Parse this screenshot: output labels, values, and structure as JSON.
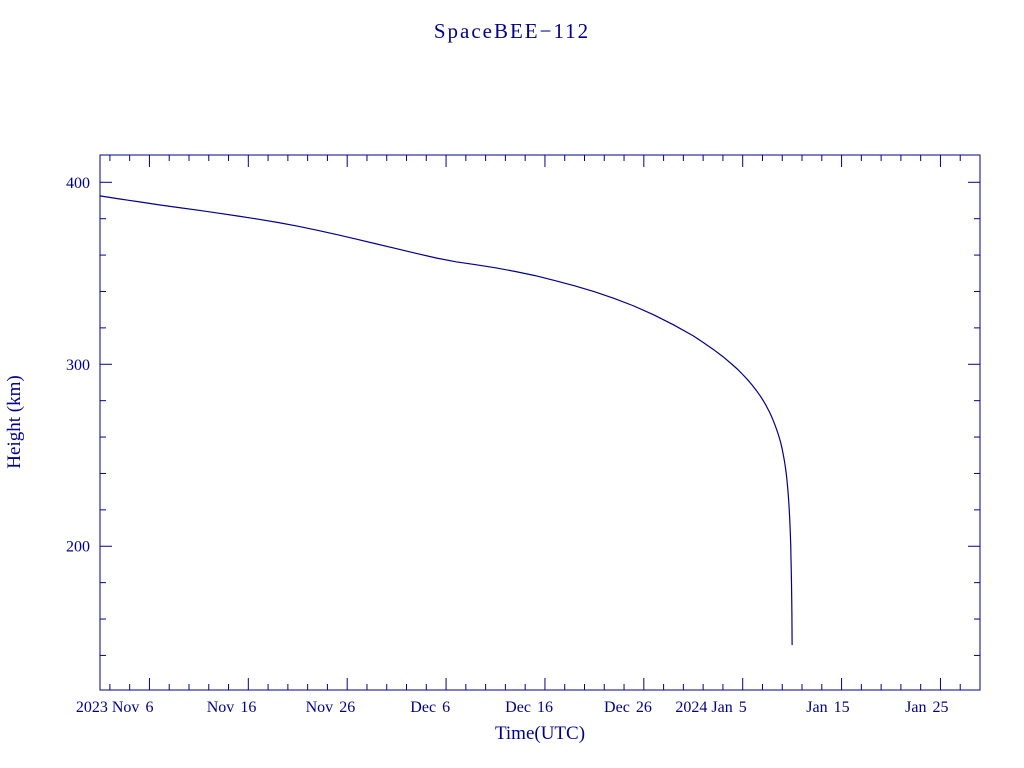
{
  "colors": {
    "ink": "#00008B",
    "background": "#FFFFFF"
  },
  "chart_data": {
    "type": "line",
    "title": "SpaceBEE−112",
    "xlabel": "Time(UTC)",
    "ylabel": "Height (km)",
    "x_unit": "days since 2023 Nov 1 00:00 UTC",
    "xlim": [
      0,
      89
    ],
    "ylim": [
      121,
      415
    ],
    "grid": false,
    "legend": "none",
    "x_ticks": [
      {
        "day": 5,
        "number": "6",
        "prefix": "2023 Nov"
      },
      {
        "day": 15,
        "number": "16",
        "prefix": "Nov"
      },
      {
        "day": 25,
        "number": "26",
        "prefix": "Nov"
      },
      {
        "day": 35,
        "number": "6",
        "prefix": "Dec"
      },
      {
        "day": 45,
        "number": "16",
        "prefix": "Dec"
      },
      {
        "day": 55,
        "number": "26",
        "prefix": "Dec"
      },
      {
        "day": 65,
        "number": "5",
        "prefix": "2024 Jan"
      },
      {
        "day": 75,
        "number": "15",
        "prefix": "Jan"
      },
      {
        "day": 85,
        "number": "25",
        "prefix": "Jan"
      }
    ],
    "x_minor_step": 2,
    "y_ticks": [
      {
        "value": 200,
        "label": "200"
      },
      {
        "value": 300,
        "label": "300"
      },
      {
        "value": 400,
        "label": "400"
      }
    ],
    "y_minor_step": 20,
    "series": [
      {
        "name": "SpaceBEE-112 height",
        "points": [
          [
            0,
            392.5
          ],
          [
            2,
            390.8
          ],
          [
            4,
            389.2
          ],
          [
            6,
            387.6
          ],
          [
            8,
            386.1
          ],
          [
            10,
            384.6
          ],
          [
            12,
            383.0
          ],
          [
            14,
            381.4
          ],
          [
            16,
            379.7
          ],
          [
            18,
            377.9
          ],
          [
            20,
            375.9
          ],
          [
            22,
            373.6
          ],
          [
            24,
            371.2
          ],
          [
            26,
            368.7
          ],
          [
            28,
            366.1
          ],
          [
            30,
            363.5
          ],
          [
            32,
            360.9
          ],
          [
            34,
            358.4
          ],
          [
            36,
            356.3
          ],
          [
            38,
            354.7
          ],
          [
            40,
            353.0
          ],
          [
            42,
            351.0
          ],
          [
            44,
            348.7
          ],
          [
            46,
            346.0
          ],
          [
            48,
            343.1
          ],
          [
            50,
            339.9
          ],
          [
            52,
            336.2
          ],
          [
            54,
            332.0
          ],
          [
            56,
            327.2
          ],
          [
            58,
            321.7
          ],
          [
            60,
            315.6
          ],
          [
            61,
            312.0
          ],
          [
            62,
            308.3
          ],
          [
            63,
            304.2
          ],
          [
            64,
            299.6
          ],
          [
            64.5,
            297.1
          ],
          [
            65,
            294.4
          ],
          [
            65.5,
            291.5
          ],
          [
            66,
            288.3
          ],
          [
            66.4,
            285.5
          ],
          [
            66.8,
            282.4
          ],
          [
            67.1,
            279.8
          ],
          [
            67.4,
            277.0
          ],
          [
            67.7,
            273.8
          ],
          [
            67.9,
            271.5
          ],
          [
            68.1,
            269.0
          ],
          [
            68.3,
            266.2
          ],
          [
            68.5,
            263.1
          ],
          [
            68.65,
            260.6
          ],
          [
            68.8,
            257.7
          ],
          [
            68.95,
            254.4
          ],
          [
            69.05,
            251.9
          ],
          [
            69.15,
            249.1
          ],
          [
            69.25,
            245.9
          ],
          [
            69.32,
            243.4
          ],
          [
            69.39,
            240.5
          ],
          [
            69.45,
            237.7
          ],
          [
            69.51,
            234.5
          ],
          [
            69.57,
            230.8
          ],
          [
            69.62,
            227.3
          ],
          [
            69.67,
            223.2
          ],
          [
            69.71,
            219.5
          ],
          [
            69.75,
            215.2
          ],
          [
            69.78,
            211.6
          ],
          [
            69.81,
            207.5
          ],
          [
            69.84,
            202.8
          ],
          [
            69.86,
            199.2
          ],
          [
            69.88,
            195.2
          ],
          [
            69.9,
            190.7
          ],
          [
            69.92,
            185.5
          ],
          [
            69.93,
            182.6
          ],
          [
            69.94,
            179.4
          ],
          [
            69.95,
            175.9
          ],
          [
            69.96,
            172.0
          ],
          [
            69.97,
            167.5
          ],
          [
            69.98,
            162.1
          ],
          [
            69.99,
            155.4
          ],
          [
            70.0,
            146.0
          ]
        ]
      }
    ]
  }
}
